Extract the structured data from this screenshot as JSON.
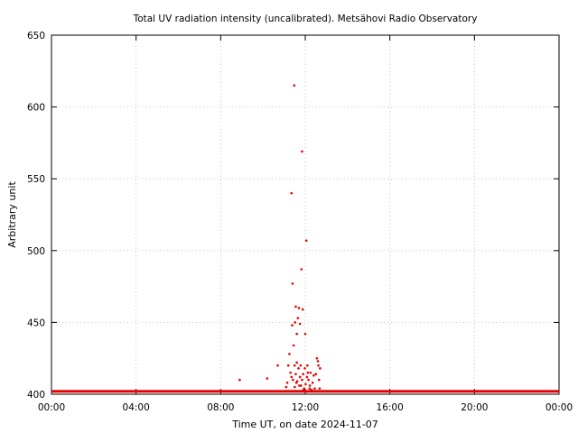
{
  "chart_data": {
    "type": "scatter",
    "title": "Total UV radiation intensity (uncalibrated). Metsähovi Radio Observatory",
    "xlabel": "Time UT, on date 2024-11-07",
    "ylabel": "Arbitrary unit",
    "xlim": [
      0,
      24
    ],
    "ylim": [
      400,
      650
    ],
    "xticks": [
      0,
      4,
      8,
      12,
      16,
      20,
      24
    ],
    "xtick_labels": [
      "00:00",
      "04:00",
      "08:00",
      "12:00",
      "16:00",
      "20:00",
      "00:00"
    ],
    "yticks": [
      400,
      450,
      500,
      550,
      600,
      650
    ],
    "ytick_labels": [
      "400",
      "450",
      "500",
      "550",
      "600",
      "650"
    ],
    "grid": true,
    "marker_color": "#e60000",
    "baseline": {
      "value": 402,
      "x_range": [
        0,
        24
      ]
    },
    "series": [
      {
        "x": [
          8.9,
          10.2,
          10.7,
          11.1,
          11.15,
          11.2,
          11.25,
          11.3,
          11.35,
          11.35,
          11.38,
          11.4,
          11.42,
          11.45,
          11.48,
          11.5,
          11.5,
          11.52,
          11.55,
          11.55,
          11.58,
          11.6,
          11.6,
          11.62,
          11.65,
          11.68,
          11.7,
          11.72,
          11.75,
          11.75,
          11.78,
          11.8,
          11.82,
          11.85,
          11.85,
          11.88,
          11.9,
          11.92,
          11.95,
          11.98,
          12.0,
          12.02,
          12.05,
          12.08,
          12.1,
          12.12,
          12.15,
          12.2,
          12.22,
          12.25,
          12.3,
          12.35,
          12.4,
          12.45,
          12.5,
          12.55,
          12.6,
          12.62,
          12.65,
          12.68,
          12.7
        ],
        "y": [
          410,
          411,
          420,
          405,
          408,
          420,
          428,
          415,
          540,
          412,
          448,
          477,
          410,
          434,
          615,
          420,
          405,
          450,
          414,
          461,
          408,
          422,
          442,
          409,
          453,
          418,
          460,
          406,
          449,
          412,
          420,
          406,
          487,
          410,
          569,
          459,
          414,
          403,
          404,
          418,
          442,
          407,
          507,
          412,
          420,
          415,
          410,
          404,
          406,
          415,
          403,
          408,
          413,
          404,
          414,
          425,
          423,
          420,
          410,
          404,
          418
        ]
      }
    ]
  }
}
